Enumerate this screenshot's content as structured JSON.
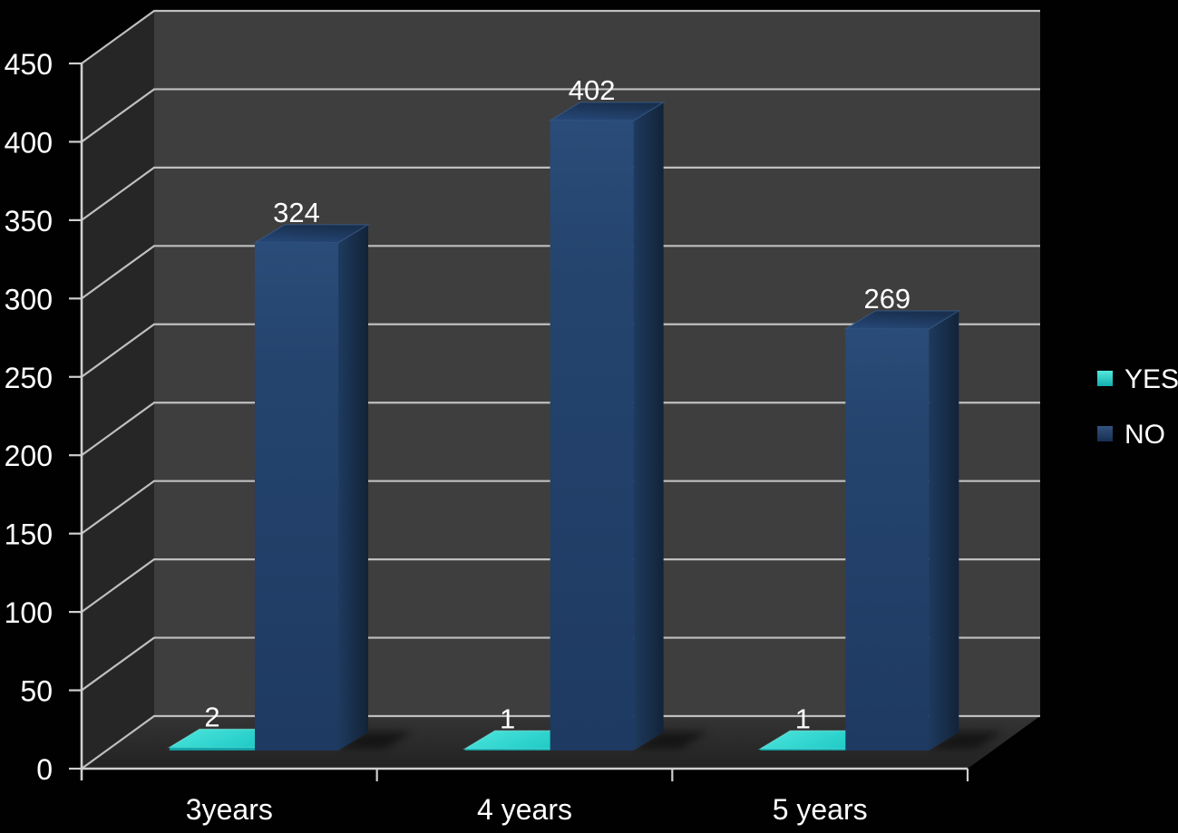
{
  "chart_data": {
    "type": "bar",
    "projection": "3d",
    "title": "",
    "categories": [
      "3years",
      "4 years",
      "5 years"
    ],
    "series": [
      {
        "name": "YES",
        "values": [
          2,
          1,
          1
        ],
        "color": "#2BD8D0"
      },
      {
        "name": "NO",
        "values": [
          324,
          402,
          269
        ],
        "color": "#24446E"
      }
    ],
    "data_labels_shown": true,
    "y_axis": {
      "min": 0,
      "max": 450,
      "step": 50,
      "tick_labels": [
        "0",
        "50",
        "100",
        "150",
        "200",
        "250",
        "300",
        "350",
        "400",
        "450"
      ]
    },
    "legend": {
      "position": "right",
      "entries": [
        {
          "label": "YES",
          "color": "#2BD8D0"
        },
        {
          "label": "NO",
          "color": "#24446E"
        }
      ]
    },
    "grid": true,
    "colors": {
      "background": "#010101",
      "back_wall": "#3E3E3E",
      "left_wall": "#262626",
      "floor_top": "#313131",
      "floor_bottom": "#232323",
      "gridline": "#BFBFBF",
      "axis": "#CFCFCF",
      "text": "#FFFFFF",
      "no_front": "#24446E",
      "no_top": "#1C3659",
      "no_side_dark": "#132540",
      "yes_top": "#2FD8D2",
      "yes_front": "#15A8AC"
    }
  }
}
